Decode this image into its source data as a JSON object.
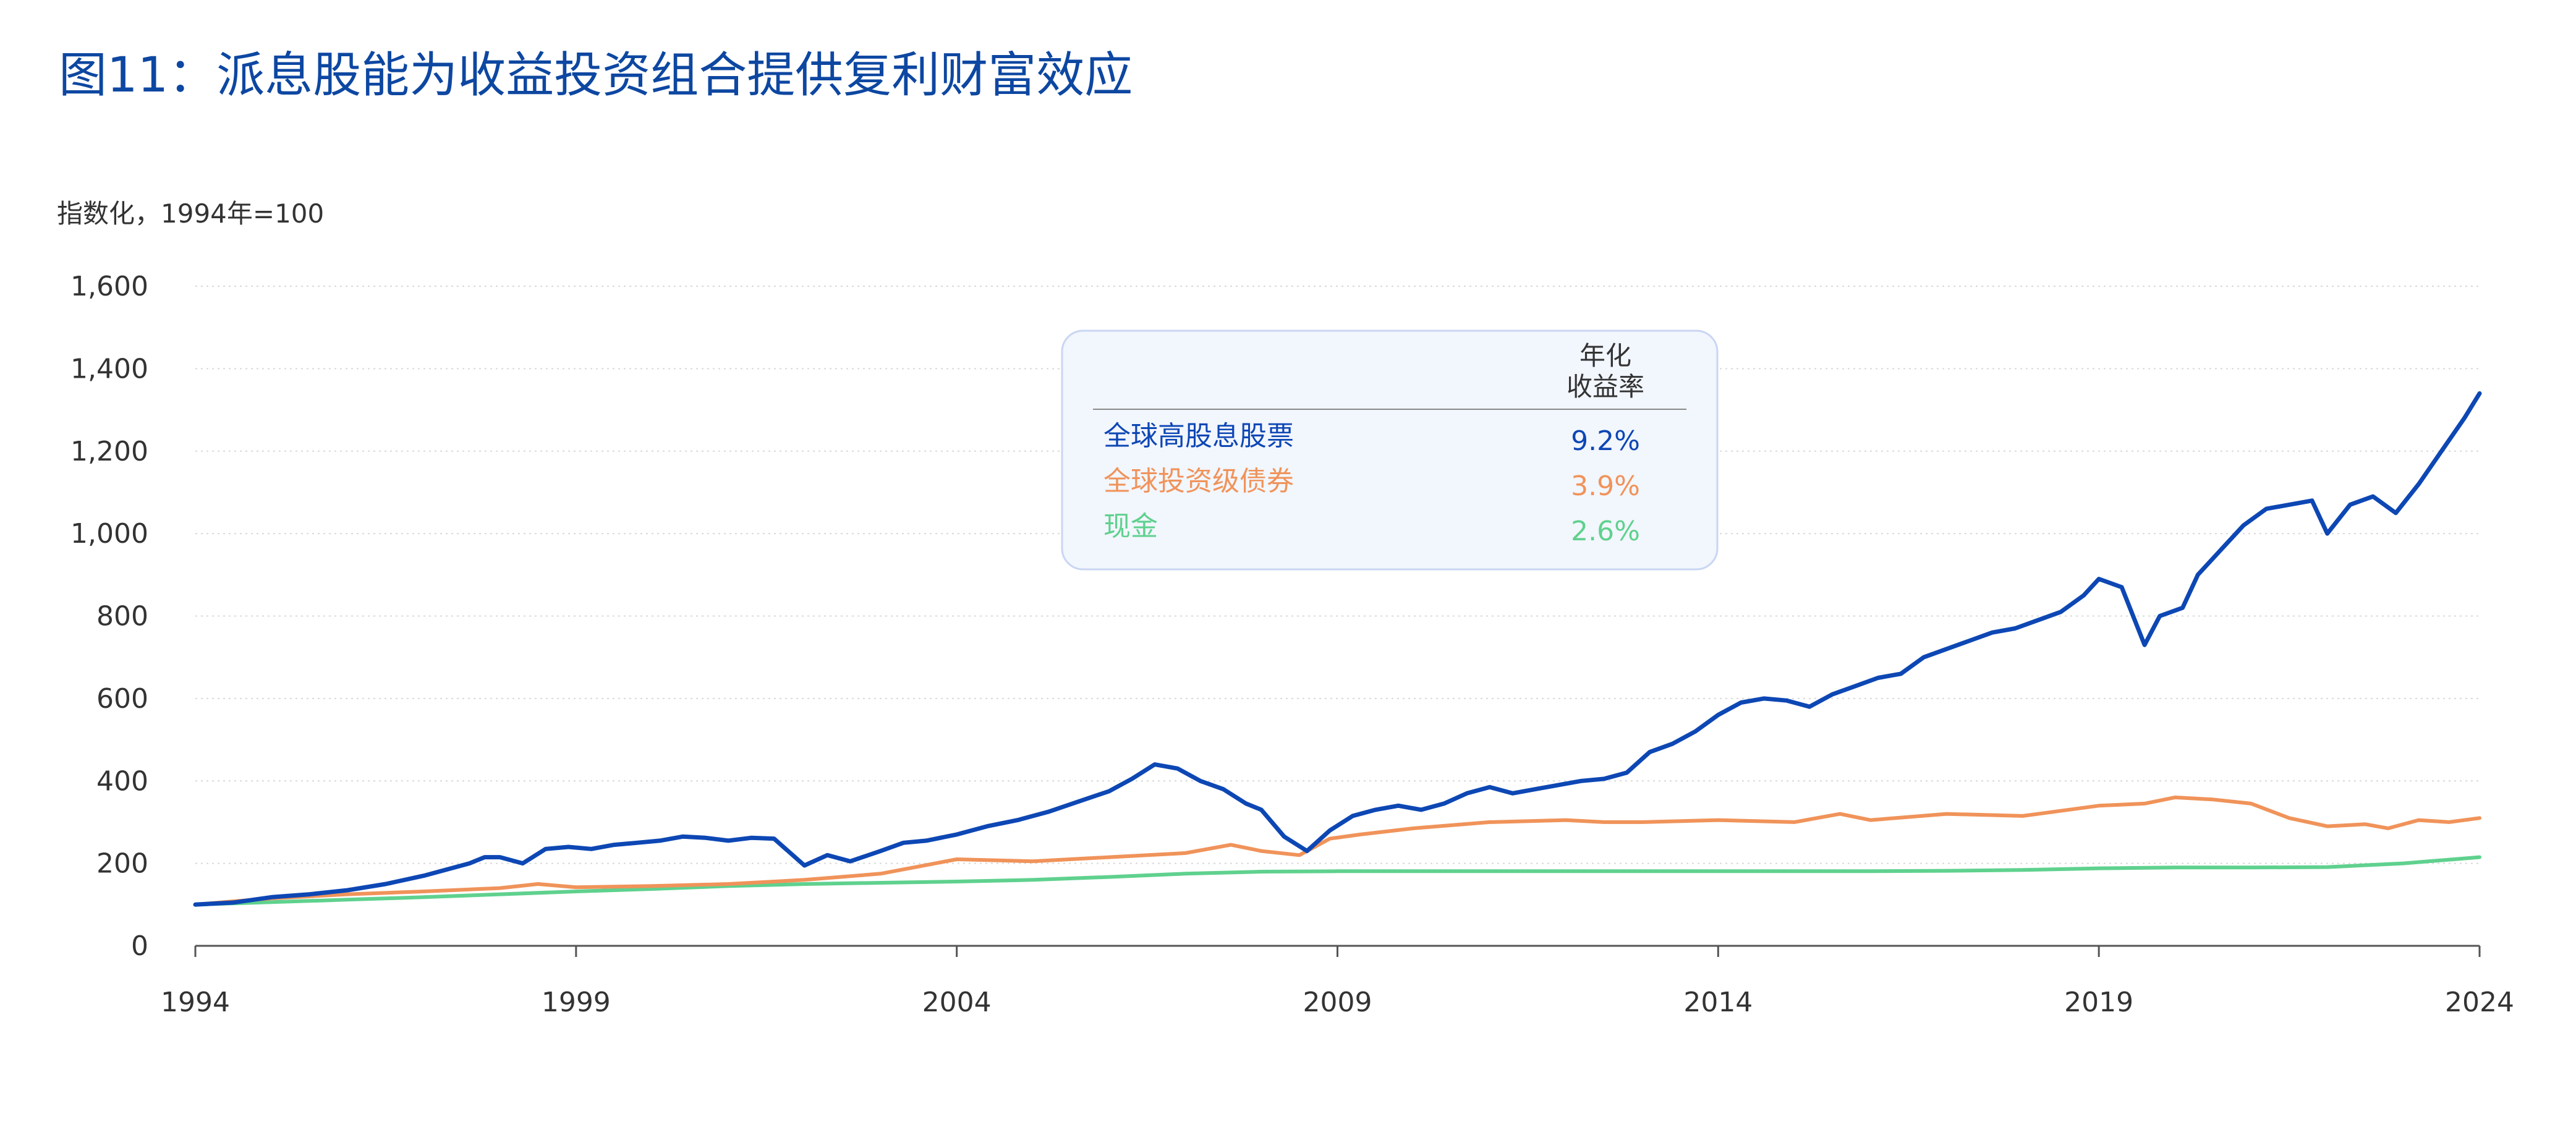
{
  "chart_data": {
    "type": "line",
    "title": "图11：派息股能为收益投资组合提供复利财富效应",
    "ylabel": "指数化，1994年=100",
    "xlabel": "",
    "x_ticks": [
      "1994",
      "1999",
      "2004",
      "2009",
      "2014",
      "2019",
      "2024"
    ],
    "y_ticks": [
      "0",
      "200",
      "400",
      "600",
      "800",
      "1,000",
      "1,200",
      "1,400",
      "1,600"
    ],
    "xlim": [
      1994,
      2024
    ],
    "ylim": [
      0,
      1600
    ],
    "grid": "horizontal-dotted",
    "legend_placement": "top-center",
    "legend_header": [
      "年化",
      "收益率"
    ],
    "series": [
      {
        "name": "全球高股息股票",
        "annual_return": "9.2%",
        "color": "#0d47b4",
        "x": [
          1994.0,
          1994.5,
          1995.0,
          1995.5,
          1996.0,
          1996.5,
          1997.0,
          1997.3,
          1997.6,
          1997.8,
          1998.0,
          1998.3,
          1998.6,
          1998.9,
          1999.2,
          1999.5,
          1999.8,
          2000.1,
          2000.4,
          2000.7,
          2001.0,
          2001.3,
          2001.6,
          2002.0,
          2002.3,
          2002.6,
          2003.0,
          2003.3,
          2003.6,
          2004.0,
          2004.4,
          2004.8,
          2005.2,
          2005.6,
          2006.0,
          2006.3,
          2006.6,
          2006.9,
          2007.2,
          2007.5,
          2007.8,
          2008.0,
          2008.3,
          2008.6,
          2008.9,
          2009.2,
          2009.5,
          2009.8,
          2010.1,
          2010.4,
          2010.7,
          2011.0,
          2011.3,
          2011.6,
          2011.9,
          2012.2,
          2012.5,
          2012.8,
          2013.1,
          2013.4,
          2013.7,
          2014.0,
          2014.3,
          2014.6,
          2014.9,
          2015.2,
          2015.5,
          2015.8,
          2016.1,
          2016.4,
          2016.7,
          2017.0,
          2017.3,
          2017.6,
          2017.9,
          2018.2,
          2018.5,
          2018.8,
          2019.0,
          2019.3,
          2019.6,
          2019.8,
          2020.1,
          2020.3,
          2020.6,
          2020.9,
          2021.2,
          2021.5,
          2021.8,
          2022.0,
          2022.3,
          2022.6,
          2022.9,
          2023.2,
          2023.5,
          2023.8,
          2024.0
        ],
        "values": [
          100,
          105,
          118,
          125,
          135,
          150,
          170,
          185,
          200,
          215,
          215,
          200,
          235,
          240,
          235,
          245,
          250,
          255,
          265,
          262,
          255,
          262,
          260,
          195,
          220,
          205,
          230,
          250,
          255,
          270,
          290,
          305,
          325,
          350,
          375,
          405,
          440,
          430,
          400,
          380,
          345,
          330,
          265,
          230,
          280,
          315,
          330,
          340,
          330,
          345,
          370,
          385,
          370,
          380,
          390,
          400,
          405,
          420,
          470,
          490,
          520,
          560,
          590,
          600,
          595,
          580,
          610,
          630,
          650,
          660,
          700,
          720,
          740,
          760,
          770,
          790,
          810,
          850,
          890,
          870,
          730,
          800,
          820,
          900,
          960,
          1020,
          1060,
          1070,
          1080,
          1000,
          1070,
          1090,
          1050,
          1120,
          1200,
          1280,
          1340
        ]
      },
      {
        "name": "全球投资级债券",
        "annual_return": "3.9%",
        "color": "#f0935a",
        "x": [
          1994.0,
          1994.5,
          1995.0,
          1996.0,
          1997.0,
          1998.0,
          1998.5,
          1999.0,
          2000.0,
          2001.0,
          2002.0,
          2003.0,
          2004.0,
          2005.0,
          2006.0,
          2007.0,
          2007.6,
          2008.0,
          2008.5,
          2008.9,
          2009.3,
          2010.0,
          2011.0,
          2012.0,
          2012.5,
          2013.0,
          2014.0,
          2015.0,
          2015.6,
          2016.0,
          2017.0,
          2018.0,
          2019.0,
          2019.6,
          2020.0,
          2020.5,
          2021.0,
          2021.5,
          2022.0,
          2022.5,
          2022.8,
          2023.2,
          2023.6,
          2024.0
        ],
        "values": [
          100,
          108,
          115,
          125,
          132,
          140,
          150,
          142,
          145,
          150,
          160,
          175,
          210,
          205,
          215,
          225,
          245,
          230,
          220,
          260,
          270,
          285,
          300,
          305,
          300,
          300,
          305,
          300,
          320,
          305,
          320,
          315,
          340,
          345,
          360,
          355,
          345,
          310,
          290,
          295,
          285,
          305,
          300,
          310
        ]
      },
      {
        "name": "现金",
        "annual_return": "2.6%",
        "color": "#5fd18e",
        "x": [
          1994.0,
          1995.0,
          1996.0,
          1997.0,
          1998.0,
          1999.0,
          2000.0,
          2001.0,
          2002.0,
          2003.0,
          2004.0,
          2005.0,
          2006.0,
          2007.0,
          2008.0,
          2009.0,
          2010.0,
          2011.0,
          2012.0,
          2013.0,
          2014.0,
          2015.0,
          2016.0,
          2017.0,
          2018.0,
          2019.0,
          2020.0,
          2021.0,
          2022.0,
          2023.0,
          2024.0
        ],
        "values": [
          100,
          106,
          112,
          118,
          125,
          132,
          138,
          145,
          150,
          153,
          156,
          160,
          167,
          175,
          180,
          181,
          181,
          181,
          181,
          181,
          181,
          181,
          181,
          182,
          184,
          188,
          190,
          190,
          191,
          200,
          215
        ]
      }
    ]
  }
}
